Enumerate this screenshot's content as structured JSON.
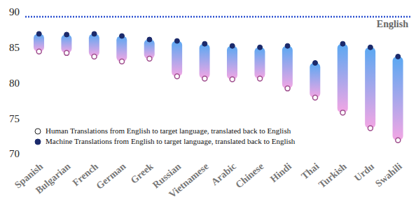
{
  "chart_data": {
    "type": "range",
    "categories": [
      "Spanish",
      "Bulgarian",
      "French",
      "German",
      "Greek",
      "Russian",
      "Vietnamese",
      "Arabic",
      "Chinese",
      "Hindi",
      "Thai",
      "Turkish",
      "Urdu",
      "Swahili"
    ],
    "series": [
      {
        "name": "Human Translations from English to target language, translated back to English",
        "color": "#a0508f",
        "marker": "open_circle",
        "values": [
          84.4,
          84.2,
          83.7,
          83.0,
          83.4,
          80.9,
          80.6,
          80.5,
          80.6,
          79.2,
          77.9,
          75.8,
          73.6,
          71.9
        ]
      },
      {
        "name": "Machine Translations from English to target language, translated back to English",
        "color": "#1b2a6b",
        "marker": "circle",
        "values": [
          86.9,
          86.8,
          86.9,
          86.6,
          86.1,
          85.9,
          85.5,
          85.2,
          85.0,
          85.2,
          82.8,
          85.5,
          85.0,
          83.7
        ]
      }
    ],
    "reference_line": {
      "label": "English",
      "value": 89.3,
      "color": "#2a4fd0",
      "line_style": "dotted"
    },
    "ylim": [
      70,
      90
    ],
    "yticks": [
      70,
      75,
      80,
      85,
      90
    ],
    "grid": false,
    "legend": "lower left"
  }
}
